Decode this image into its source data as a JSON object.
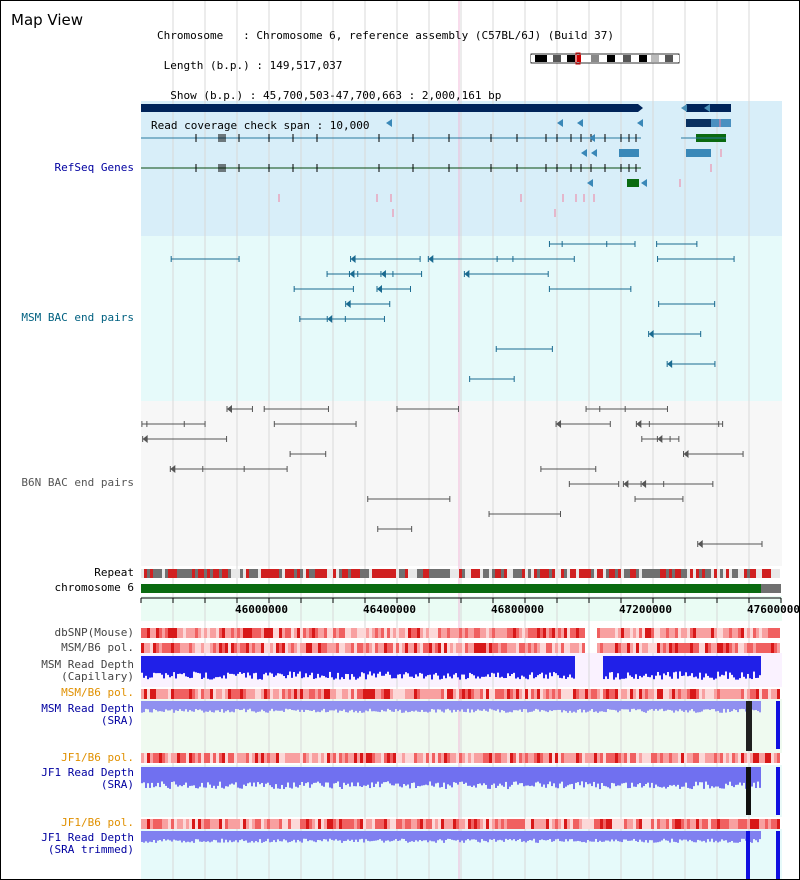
{
  "title": "Map View",
  "info": {
    "chromosome": "Chromosome   : Chromosome 6, reference assembly (C57BL/6J) (Build 37)",
    "length": " Length (b.p.) : 149,517,037",
    "show": "  Show (b.p.) : 45,700,503-47,700,663 : 2,000,161 bp",
    "read_span": "Read coverage check span : 10,000"
  },
  "tracks": {
    "refseq": "RefSeq Genes",
    "msm_bac": "MSM BAC end pairs",
    "b6n_bac": "B6N BAC end pairs",
    "repeat": "Repeat",
    "chromosome": "chromosome 6",
    "dbsnp": "dbSNP(Mouse)",
    "msm_b6_pol": "MSM/B6 pol.",
    "msm_read_cap": "MSM Read Depth\n(Capillary)",
    "msm_b6_pol2": "MSM/B6 pol.",
    "msm_read_sra": "MSM Read Depth\n(SRA)",
    "jf1_b6_pol": "JF1/B6 pol.",
    "jf1_read_sra": "JF1 Read Depth\n(SRA)",
    "jf1_b6_pol2": "JF1/B6 pol.",
    "jf1_read_sra_trim": "JF1 Read Depth\n(SRA trimmed)"
  },
  "axis": {
    "ticks": [
      "46000000",
      "46400000",
      "46800000",
      "47200000",
      "47600000"
    ]
  },
  "colors": {
    "refseq_label": "#0000a0",
    "msm_label": "#006080",
    "b6n_label": "#555555",
    "orange_label": "#e09000",
    "blue_label": "#0000a0"
  }
}
